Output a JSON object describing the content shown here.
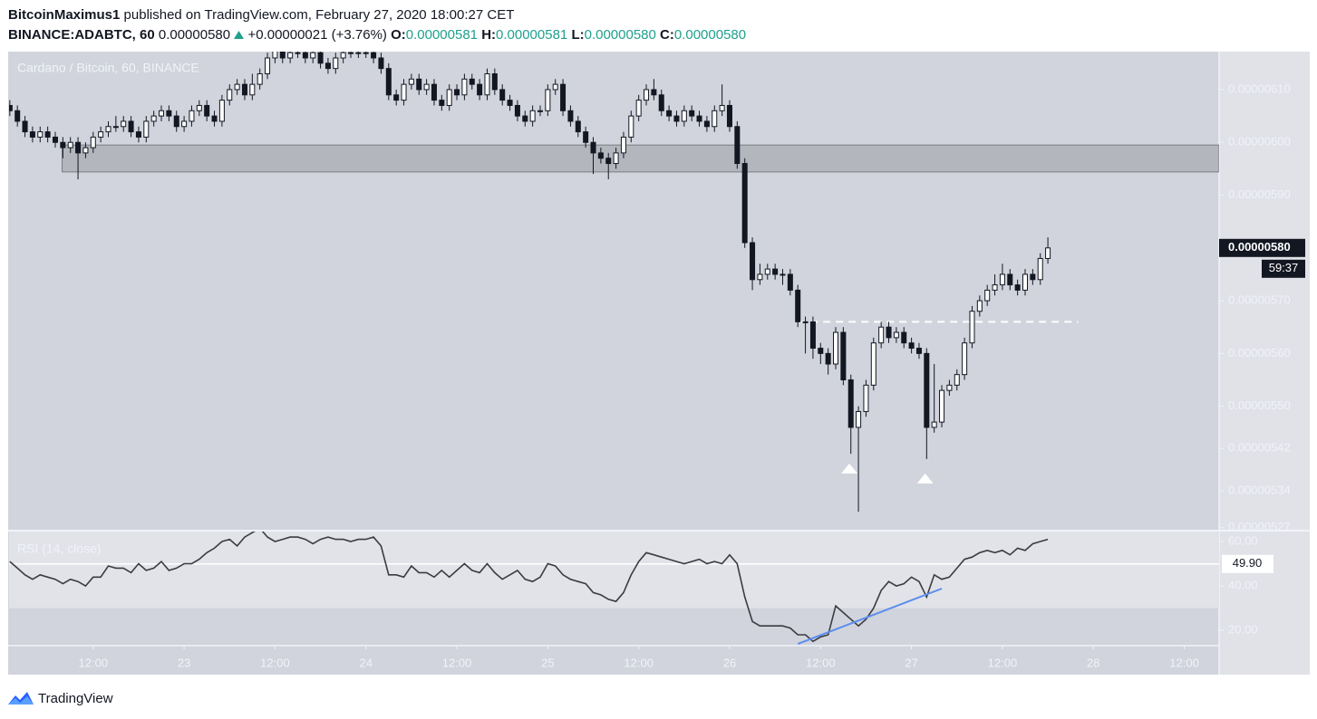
{
  "header": {
    "author": "BitcoinMaximus1",
    "published": "published on TradingView.com, February 27, 2020 18:00:27 CET",
    "symbol": "BINANCE:ADABTC, 60",
    "last": "0.00000580",
    "change": "+0.00000021 (+3.76%)",
    "o_label": "O:",
    "o": "0.00000581",
    "h_label": "H:",
    "h": "0.00000581",
    "l_label": "L:",
    "l": "0.00000580",
    "c_label": "C:",
    "c": "0.00000580"
  },
  "chart_data": [
    {
      "type": "candlestick",
      "title": "Cardano / Bitcoin, 60, BINANCE",
      "up_color": "#ffffff",
      "down_color": "#131722",
      "xlim": [
        -0.1,
        159.6
      ],
      "xticks": [
        {
          "value": 11,
          "label": "12:00"
        },
        {
          "value": 23,
          "label": "23"
        },
        {
          "value": 35,
          "label": "12:00"
        },
        {
          "value": 47,
          "label": "24"
        },
        {
          "value": 59,
          "label": "12:00"
        },
        {
          "value": 71,
          "label": "25"
        },
        {
          "value": 83,
          "label": "12:00"
        },
        {
          "value": 95,
          "label": "26"
        },
        {
          "value": 107,
          "label": "12:00"
        },
        {
          "value": 119,
          "label": "27"
        },
        {
          "value": 131,
          "label": "12:00"
        },
        {
          "value": 143,
          "label": "28"
        },
        {
          "value": 155,
          "label": "12:00"
        }
      ],
      "ylim": [
        5.266e-06,
        6.172e-06
      ],
      "yticks": [
        {
          "value": 6.1e-06,
          "label": "0.00000610"
        },
        {
          "value": 6e-06,
          "label": "0.00000600"
        },
        {
          "value": 5.9e-06,
          "label": "0.00000590"
        },
        {
          "value": 5.7e-06,
          "label": "0.00000570"
        },
        {
          "value": 5.6e-06,
          "label": "0.00000560"
        },
        {
          "value": 5.5e-06,
          "label": "0.00000550"
        },
        {
          "value": 5.42e-06,
          "label": "0.00000542"
        },
        {
          "value": 5.34e-06,
          "label": "0.00000534"
        },
        {
          "value": 5.27e-06,
          "label": "0.00000527"
        }
      ],
      "zone": {
        "x_start": 6.9,
        "y": [
          5.944e-06,
          5.995e-06
        ],
        "color": "#b4b6bd"
      },
      "dashed_level": {
        "value": 5.66e-06,
        "x": [
          104,
          141
        ],
        "color": "#ffffff"
      },
      "markers": {
        "x": [
          110.8,
          120.8
        ],
        "y": [
          5.383e-06,
          5.364e-06
        ],
        "color": "#ffffff"
      },
      "last_price": {
        "value": 5.8e-06,
        "label": "0.00000580"
      },
      "countdown": "59:37",
      "ohlc": [
        [
          6.07e-06,
          6.08e-06,
          6.05e-06,
          6.06e-06
        ],
        [
          6.06e-06,
          6.07e-06,
          6.03e-06,
          6.04e-06
        ],
        [
          6.04e-06,
          6.05e-06,
          6.01e-06,
          6.02e-06
        ],
        [
          6.02e-06,
          6.03e-06,
          6e-06,
          6.01e-06
        ],
        [
          6.01e-06,
          6.03e-06,
          6e-06,
          6.02e-06
        ],
        [
          6.02e-06,
          6.03e-06,
          6e-06,
          6.01e-06
        ],
        [
          6.01e-06,
          6.02e-06,
          5.99e-06,
          6e-06
        ],
        [
          6e-06,
          6.01e-06,
          5.97e-06,
          5.99e-06
        ],
        [
          5.99e-06,
          6.01e-06,
          5.98e-06,
          6e-06
        ],
        [
          6e-06,
          6.01e-06,
          5.93e-06,
          5.98e-06
        ],
        [
          5.98e-06,
          6e-06,
          5.97e-06,
          5.99e-06
        ],
        [
          5.99e-06,
          6.02e-06,
          5.98e-06,
          6.01e-06
        ],
        [
          6.01e-06,
          6.03e-06,
          6e-06,
          6.02e-06
        ],
        [
          6.02e-06,
          6.04e-06,
          6.01e-06,
          6.03e-06
        ],
        [
          6.03e-06,
          6.05e-06,
          6.02e-06,
          6.03e-06
        ],
        [
          6.03e-06,
          6.05e-06,
          6.02e-06,
          6.04e-06
        ],
        [
          6.04e-06,
          6.05e-06,
          6.01e-06,
          6.02e-06
        ],
        [
          6.02e-06,
          6.03e-06,
          6e-06,
          6.01e-06
        ],
        [
          6.01e-06,
          6.05e-06,
          6e-06,
          6.04e-06
        ],
        [
          6.04e-06,
          6.06e-06,
          6.03e-06,
          6.05e-06
        ],
        [
          6.05e-06,
          6.07e-06,
          6.04e-06,
          6.06e-06
        ],
        [
          6.06e-06,
          6.07e-06,
          6.04e-06,
          6.05e-06
        ],
        [
          6.05e-06,
          6.06e-06,
          6.02e-06,
          6.03e-06
        ],
        [
          6.03e-06,
          6.05e-06,
          6.02e-06,
          6.04e-06
        ],
        [
          6.04e-06,
          6.07e-06,
          6.03e-06,
          6.06e-06
        ],
        [
          6.06e-06,
          6.08e-06,
          6.05e-06,
          6.07e-06
        ],
        [
          6.07e-06,
          6.08e-06,
          6.04e-06,
          6.05e-06
        ],
        [
          6.05e-06,
          6.06e-06,
          6.03e-06,
          6.04e-06
        ],
        [
          6.04e-06,
          6.09e-06,
          6.03e-06,
          6.08e-06
        ],
        [
          6.08e-06,
          6.11e-06,
          6.07e-06,
          6.1e-06
        ],
        [
          6.1e-06,
          6.12e-06,
          6.09e-06,
          6.11e-06
        ],
        [
          6.11e-06,
          6.12e-06,
          6.08e-06,
          6.09e-06
        ],
        [
          6.09e-06,
          6.13e-06,
          6.08e-06,
          6.11e-06
        ],
        [
          6.11e-06,
          6.14e-06,
          6.1e-06,
          6.13e-06
        ],
        [
          6.13e-06,
          6.17e-06,
          6.12e-06,
          6.16e-06
        ],
        [
          6.16e-06,
          6.19e-06,
          6.15e-06,
          6.18e-06
        ],
        [
          6.18e-06,
          6.19e-06,
          6.15e-06,
          6.16e-06
        ],
        [
          6.16e-06,
          6.18e-06,
          6.15e-06,
          6.17e-06
        ],
        [
          6.17e-06,
          6.18e-06,
          6.16e-06,
          6.17e-06
        ],
        [
          6.17e-06,
          6.18e-06,
          6.15e-06,
          6.16e-06
        ],
        [
          6.16e-06,
          6.18e-06,
          6.15e-06,
          6.17e-06
        ],
        [
          6.17e-06,
          6.18e-06,
          6.14e-06,
          6.15e-06
        ],
        [
          6.15e-06,
          6.16e-06,
          6.13e-06,
          6.14e-06
        ],
        [
          6.14e-06,
          6.17e-06,
          6.13e-06,
          6.16e-06
        ],
        [
          6.16e-06,
          6.18e-06,
          6.15e-06,
          6.17e-06
        ],
        [
          6.17e-06,
          6.18e-06,
          6.16e-06,
          6.17e-06
        ],
        [
          6.17e-06,
          6.18e-06,
          6.16e-06,
          6.17e-06
        ],
        [
          6.17e-06,
          6.18e-06,
          6.16e-06,
          6.17e-06
        ],
        [
          6.17e-06,
          6.18e-06,
          6.15e-06,
          6.16e-06
        ],
        [
          6.16e-06,
          6.17e-06,
          6.13e-06,
          6.14e-06
        ],
        [
          6.14e-06,
          6.15e-06,
          6.08e-06,
          6.09e-06
        ],
        [
          6.09e-06,
          6.1e-06,
          6.07e-06,
          6.08e-06
        ],
        [
          6.08e-06,
          6.12e-06,
          6.07e-06,
          6.11e-06
        ],
        [
          6.11e-06,
          6.13e-06,
          6.1e-06,
          6.12e-06
        ],
        [
          6.12e-06,
          6.13e-06,
          6.09e-06,
          6.1e-06
        ],
        [
          6.1e-06,
          6.12e-06,
          6.09e-06,
          6.11e-06
        ],
        [
          6.11e-06,
          6.12e-06,
          6.07e-06,
          6.08e-06
        ],
        [
          6.08e-06,
          6.09e-06,
          6.06e-06,
          6.07e-06
        ],
        [
          6.07e-06,
          6.11e-06,
          6.06e-06,
          6.1e-06
        ],
        [
          6.1e-06,
          6.11e-06,
          6.08e-06,
          6.09e-06
        ],
        [
          6.09e-06,
          6.13e-06,
          6.08e-06,
          6.12e-06
        ],
        [
          6.12e-06,
          6.13e-06,
          6.1e-06,
          6.11e-06
        ],
        [
          6.11e-06,
          6.12e-06,
          6.08e-06,
          6.09e-06
        ],
        [
          6.09e-06,
          6.14e-06,
          6.08e-06,
          6.13e-06
        ],
        [
          6.13e-06,
          6.14e-06,
          6.09e-06,
          6.1e-06
        ],
        [
          6.1e-06,
          6.11e-06,
          6.07e-06,
          6.08e-06
        ],
        [
          6.08e-06,
          6.09e-06,
          6.06e-06,
          6.07e-06
        ],
        [
          6.07e-06,
          6.08e-06,
          6.04e-06,
          6.05e-06
        ],
        [
          6.05e-06,
          6.06e-06,
          6.03e-06,
          6.04e-06
        ],
        [
          6.04e-06,
          6.07e-06,
          6.03e-06,
          6.06e-06
        ],
        [
          6.06e-06,
          6.07e-06,
          6.05e-06,
          6.06e-06
        ],
        [
          6.06e-06,
          6.11e-06,
          6.05e-06,
          6.1e-06
        ],
        [
          6.1e-06,
          6.12e-06,
          6.09e-06,
          6.11e-06
        ],
        [
          6.11e-06,
          6.12e-06,
          6.05e-06,
          6.06e-06
        ],
        [
          6.06e-06,
          6.07e-06,
          6.03e-06,
          6.04e-06
        ],
        [
          6.04e-06,
          6.05e-06,
          6.01e-06,
          6.02e-06
        ],
        [
          6.02e-06,
          6.03e-06,
          5.99e-06,
          6e-06
        ],
        [
          6e-06,
          6.01e-06,
          5.94e-06,
          5.98e-06
        ],
        [
          5.98e-06,
          5.99e-06,
          5.96e-06,
          5.97e-06
        ],
        [
          5.97e-06,
          5.98e-06,
          5.93e-06,
          5.96e-06
        ],
        [
          5.96e-06,
          5.99e-06,
          5.95e-06,
          5.98e-06
        ],
        [
          5.98e-06,
          6.02e-06,
          5.97e-06,
          6.01e-06
        ],
        [
          6.01e-06,
          6.06e-06,
          6e-06,
          6.05e-06
        ],
        [
          6.05e-06,
          6.09e-06,
          6.04e-06,
          6.08e-06
        ],
        [
          6.08e-06,
          6.11e-06,
          6.07e-06,
          6.1e-06
        ],
        [
          6.1e-06,
          6.12e-06,
          6.08e-06,
          6.09e-06
        ],
        [
          6.09e-06,
          6.1e-06,
          6.05e-06,
          6.06e-06
        ],
        [
          6.06e-06,
          6.07e-06,
          6.04e-06,
          6.05e-06
        ],
        [
          6.05e-06,
          6.06e-06,
          6.03e-06,
          6.04e-06
        ],
        [
          6.04e-06,
          6.07e-06,
          6.03e-06,
          6.06e-06
        ],
        [
          6.06e-06,
          6.07e-06,
          6.04e-06,
          6.05e-06
        ],
        [
          6.05e-06,
          6.06e-06,
          6.03e-06,
          6.04e-06
        ],
        [
          6.04e-06,
          6.05e-06,
          6.02e-06,
          6.03e-06
        ],
        [
          6.03e-06,
          6.07e-06,
          6.02e-06,
          6.06e-06
        ],
        [
          6.06e-06,
          6.11e-06,
          6.05e-06,
          6.07e-06
        ],
        [
          6.07e-06,
          6.08e-06,
          6.02e-06,
          6.03e-06
        ],
        [
          6.03e-06,
          6.04e-06,
          5.95e-06,
          5.96e-06
        ],
        [
          5.96e-06,
          5.97e-06,
          5.8e-06,
          5.81e-06
        ],
        [
          5.81e-06,
          5.82e-06,
          5.72e-06,
          5.74e-06
        ],
        [
          5.74e-06,
          5.77e-06,
          5.73e-06,
          5.75e-06
        ],
        [
          5.75e-06,
          5.77e-06,
          5.74e-06,
          5.76e-06
        ],
        [
          5.76e-06,
          5.77e-06,
          5.74e-06,
          5.75e-06
        ],
        [
          5.75e-06,
          5.76e-06,
          5.73e-06,
          5.75e-06
        ],
        [
          5.75e-06,
          5.76e-06,
          5.71e-06,
          5.72e-06
        ],
        [
          5.72e-06,
          5.73e-06,
          5.65e-06,
          5.66e-06
        ],
        [
          5.66e-06,
          5.67e-06,
          5.6e-06,
          5.66e-06
        ],
        [
          5.66e-06,
          5.67e-06,
          5.59e-06,
          5.61e-06
        ],
        [
          5.61e-06,
          5.62e-06,
          5.58e-06,
          5.6e-06
        ],
        [
          5.6e-06,
          5.61e-06,
          5.56e-06,
          5.58e-06
        ],
        [
          5.58e-06,
          5.65e-06,
          5.57e-06,
          5.64e-06
        ],
        [
          5.64e-06,
          5.65e-06,
          5.54e-06,
          5.55e-06
        ],
        [
          5.55e-06,
          5.56e-06,
          5.41e-06,
          5.46e-06
        ],
        [
          5.46e-06,
          5.5e-06,
          5.3e-06,
          5.49e-06
        ],
        [
          5.49e-06,
          5.55e-06,
          5.48e-06,
          5.54e-06
        ],
        [
          5.54e-06,
          5.63e-06,
          5.53e-06,
          5.62e-06
        ],
        [
          5.62e-06,
          5.66e-06,
          5.61e-06,
          5.65e-06
        ],
        [
          5.65e-06,
          5.66e-06,
          5.62e-06,
          5.63e-06
        ],
        [
          5.63e-06,
          5.65e-06,
          5.62e-06,
          5.64e-06
        ],
        [
          5.64e-06,
          5.65e-06,
          5.61e-06,
          5.62e-06
        ],
        [
          5.62e-06,
          5.63e-06,
          5.6e-06,
          5.61e-06
        ],
        [
          5.61e-06,
          5.62e-06,
          5.59e-06,
          5.6e-06
        ],
        [
          5.6e-06,
          5.61e-06,
          5.4e-06,
          5.46e-06
        ],
        [
          5.46e-06,
          5.58e-06,
          5.45e-06,
          5.47e-06
        ],
        [
          5.47e-06,
          5.54e-06,
          5.46e-06,
          5.53e-06
        ],
        [
          5.53e-06,
          5.55e-06,
          5.52e-06,
          5.54e-06
        ],
        [
          5.54e-06,
          5.57e-06,
          5.53e-06,
          5.56e-06
        ],
        [
          5.56e-06,
          5.63e-06,
          5.55e-06,
          5.62e-06
        ],
        [
          5.62e-06,
          5.69e-06,
          5.61e-06,
          5.68e-06
        ],
        [
          5.68e-06,
          5.71e-06,
          5.67e-06,
          5.7e-06
        ],
        [
          5.7e-06,
          5.73e-06,
          5.69e-06,
          5.72e-06
        ],
        [
          5.72e-06,
          5.75e-06,
          5.71e-06,
          5.73e-06
        ],
        [
          5.73e-06,
          5.77e-06,
          5.72e-06,
          5.75e-06
        ],
        [
          5.75e-06,
          5.76e-06,
          5.72e-06,
          5.73e-06
        ],
        [
          5.73e-06,
          5.74e-06,
          5.71e-06,
          5.72e-06
        ],
        [
          5.72e-06,
          5.76e-06,
          5.71e-06,
          5.75e-06
        ],
        [
          5.75e-06,
          5.76e-06,
          5.73e-06,
          5.74e-06
        ],
        [
          5.74e-06,
          5.79e-06,
          5.73e-06,
          5.78e-06
        ],
        [
          5.78e-06,
          5.82e-06,
          5.77e-06,
          5.8e-06
        ]
      ]
    },
    {
      "type": "line",
      "title": "RSI (14, close)",
      "color": "#3a3c42",
      "xlim": [
        -0.1,
        159.6
      ],
      "ylim": [
        13.1,
        64.5
      ],
      "yticks": [
        {
          "value": 60,
          "label": "60.00"
        },
        {
          "value": 40,
          "label": "40.00"
        },
        {
          "value": 20,
          "label": "20.00"
        }
      ],
      "band": [
        30,
        70
      ],
      "ref_line": {
        "value": 49.9,
        "label": "49.90"
      },
      "trendline": {
        "x": [
          104,
          123
        ],
        "y": [
          13.9,
          38.8
        ],
        "color": "#5b8def"
      },
      "values": [
        51,
        48,
        45,
        43,
        45,
        44,
        43,
        41,
        43,
        42,
        40,
        44,
        44,
        49,
        48,
        48,
        46,
        50,
        47,
        48,
        51,
        47,
        48,
        50,
        50,
        52,
        55,
        57,
        60,
        61,
        58,
        62,
        64,
        66,
        62,
        60,
        61,
        62,
        62,
        61,
        59,
        61,
        62,
        61,
        61,
        60,
        61,
        61,
        62,
        58,
        45,
        45,
        44,
        49,
        46,
        46,
        44,
        47,
        44,
        47,
        50,
        47,
        46,
        50,
        46,
        43,
        45,
        47,
        43,
        42,
        44,
        50,
        49,
        45,
        43,
        42,
        41,
        37,
        36,
        34,
        33,
        37,
        45,
        51,
        55,
        54,
        53,
        52,
        51,
        50,
        51,
        52,
        50,
        51,
        50,
        54,
        50,
        35,
        24,
        22,
        22,
        22,
        22,
        21,
        18,
        18,
        15,
        17,
        18,
        31,
        28,
        25,
        22,
        25,
        30,
        38,
        42,
        40,
        41,
        44,
        42,
        35,
        45,
        43,
        44,
        48,
        52,
        53,
        55,
        56,
        55,
        56,
        54,
        57,
        56,
        59,
        60,
        61
      ]
    }
  ],
  "footer": {
    "brand": "TradingView"
  }
}
